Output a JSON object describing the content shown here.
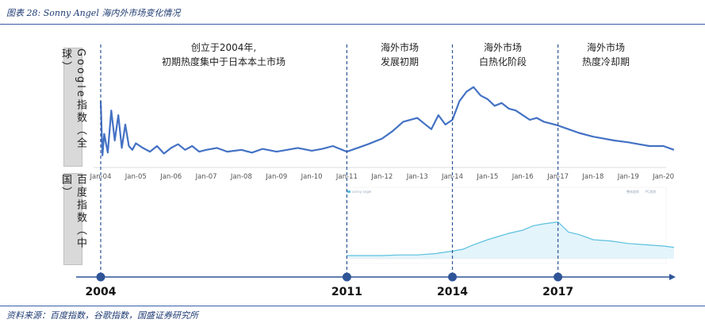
{
  "figure": {
    "title": "图表 28: Sonny Angel 海内外市场变化情况",
    "source": "资料来源：百度指数，谷歌指数，国盛证券研究所"
  },
  "labels": {
    "google": "Google指数（全球）",
    "baidu": "百度指数（中国）"
  },
  "colors": {
    "google_line": "#4472c4",
    "baidu_line": "#5bc0de",
    "divider": "#2f5597",
    "timeline": "#2f5597"
  },
  "chart_data": [
    {
      "type": "line",
      "name": "google",
      "ylabel": "Google指数（全球）",
      "x_ticks": [
        "Jan-04",
        "Jan-05",
        "Jan-06",
        "Jan-07",
        "Jan-08",
        "Jan-09",
        "Jan-10",
        "Jan-11",
        "Jan-12",
        "Jan-13",
        "Jan-14",
        "Jan-15",
        "Jan-16",
        "Jan-17",
        "Jan-18",
        "Jan-19",
        "Jan-20"
      ],
      "x": [
        2004.0,
        2004.05,
        2004.1,
        2004.2,
        2004.3,
        2004.4,
        2004.5,
        2004.6,
        2004.7,
        2004.8,
        2004.9,
        2005.0,
        2005.2,
        2005.4,
        2005.6,
        2005.8,
        2006.0,
        2006.2,
        2006.4,
        2006.6,
        2006.8,
        2007.0,
        2007.3,
        2007.6,
        2008.0,
        2008.3,
        2008.6,
        2009.0,
        2009.3,
        2009.6,
        2010.0,
        2010.3,
        2010.6,
        2011.0,
        2011.3,
        2011.6,
        2012.0,
        2012.3,
        2012.6,
        2013.0,
        2013.2,
        2013.4,
        2013.6,
        2013.8,
        2014.0,
        2014.2,
        2014.4,
        2014.6,
        2014.8,
        2015.0,
        2015.2,
        2015.4,
        2015.6,
        2015.8,
        2016.0,
        2016.2,
        2016.4,
        2016.6,
        2016.8,
        2017.0,
        2017.3,
        2017.6,
        2018.0,
        2018.3,
        2018.6,
        2019.0,
        2019.3,
        2019.6,
        2020.0,
        2020.3
      ],
      "values": [
        70,
        12,
        35,
        15,
        60,
        28,
        55,
        20,
        45,
        22,
        18,
        25,
        20,
        16,
        22,
        14,
        20,
        24,
        18,
        22,
        16,
        18,
        20,
        16,
        18,
        15,
        19,
        16,
        18,
        20,
        17,
        19,
        22,
        16,
        20,
        24,
        30,
        38,
        48,
        52,
        46,
        40,
        55,
        45,
        50,
        70,
        80,
        85,
        76,
        72,
        65,
        68,
        62,
        60,
        55,
        50,
        52,
        48,
        46,
        44,
        40,
        36,
        32,
        30,
        28,
        26,
        24,
        22,
        22,
        18
      ],
      "ylim": [
        0,
        100
      ]
    },
    {
      "type": "area",
      "name": "baidu",
      "ylabel": "百度指数（中国）",
      "x": [
        2011.0,
        2011.5,
        2012.0,
        2012.5,
        2013.0,
        2013.5,
        2014.0,
        2014.3,
        2014.6,
        2015.0,
        2015.3,
        2015.6,
        2016.0,
        2016.3,
        2016.6,
        2017.0,
        2017.3,
        2017.6,
        2018.0,
        2018.5,
        2019.0,
        2019.5,
        2020.0,
        2020.3
      ],
      "values": [
        5,
        5,
        5,
        6,
        6,
        8,
        12,
        15,
        22,
        30,
        35,
        40,
        45,
        52,
        55,
        58,
        42,
        38,
        30,
        28,
        24,
        22,
        20,
        18
      ],
      "ylim": [
        0,
        80
      ]
    }
  ],
  "phases": [
    {
      "line1": "创立于2004年,",
      "line2": "初期热度集中于日本本土市场"
    },
    {
      "line1": "海外市场",
      "line2": "发展初期"
    },
    {
      "line1": "海外市场",
      "line2": "白热化阶段"
    },
    {
      "line1": "海外市场",
      "line2": "热度冷却期"
    }
  ],
  "timeline": {
    "years": [
      "2004",
      "2011",
      "2014",
      "2017"
    ]
  },
  "baidu_inset": {
    "legend_series": "sonny angel",
    "legend_right": [
      "整体趋势",
      "PC趋势"
    ]
  }
}
